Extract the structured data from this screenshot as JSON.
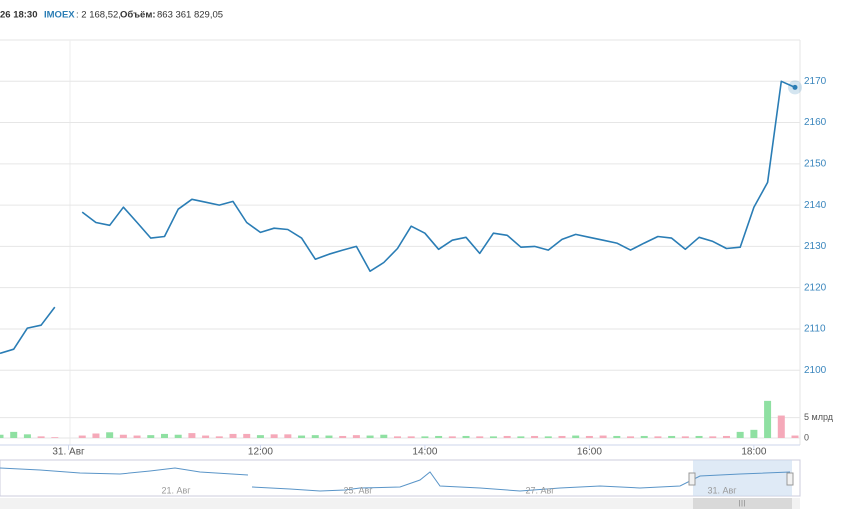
{
  "chart_data": {
    "type": "line",
    "header": {
      "date": "26 18:30",
      "ticker": "IMOEX",
      "price_text": ": 2 168,52,",
      "volume_label": "Объём:",
      "volume_value": "863 361 829,05"
    },
    "categories": [
      null,
      null,
      null,
      null,
      null,
      "31. Авг",
      null,
      null,
      null,
      null,
      null,
      null,
      null,
      null,
      null,
      null,
      null,
      null,
      null,
      "12:00",
      null,
      null,
      null,
      null,
      null,
      null,
      null,
      null,
      null,
      null,
      null,
      "14:00",
      null,
      null,
      null,
      null,
      null,
      null,
      null,
      null,
      null,
      null,
      null,
      "16:00",
      null,
      null,
      null,
      null,
      null,
      null,
      null,
      null,
      null,
      null,
      null,
      "18:00",
      null,
      null,
      null
    ],
    "series": [
      {
        "color": "#2a7db5",
        "values": [
          2104.1,
          2105.1,
          2110.2,
          2110.9,
          2115.3,
          null,
          2138.3,
          2135.8,
          2135.1,
          2139.5,
          2135.8,
          2132.0,
          2132.4,
          2139.0,
          2141.4,
          2140.7,
          2140.0,
          2140.9,
          2135.8,
          2133.4,
          2134.4,
          2134.1,
          2132.0,
          2126.9,
          2128.1,
          2129.1,
          2130.0,
          2124.0,
          2126.1,
          2129.5,
          2134.9,
          2133.2,
          2129.3,
          2131.5,
          2132.2,
          2128.3,
          2133.2,
          2132.7,
          2129.8,
          2130.0,
          2129.1,
          2131.7,
          2132.9,
          2132.2,
          2131.5,
          2130.8,
          2129.1,
          2130.8,
          2132.4,
          2132.0,
          2129.3,
          2132.2,
          2131.2,
          2129.5,
          2129.8,
          2139.5,
          2145.5,
          2170.0,
          2168.52
        ]
      }
    ],
    "ylim": [
      2094,
      2180
    ],
    "yticks": [
      2100,
      2110,
      2120,
      2130,
      2140,
      2150,
      2160,
      2170
    ],
    "grid": true,
    "volume": {
      "values": [
        0.8,
        1.5,
        0.9,
        0.4,
        0.2,
        null,
        0.6,
        1.1,
        1.4,
        0.8,
        0.6,
        0.7,
        1.0,
        0.8,
        1.2,
        0.6,
        0.4,
        1.0,
        1.0,
        0.7,
        0.9,
        0.9,
        0.6,
        0.7,
        0.6,
        0.5,
        0.7,
        0.6,
        0.8,
        0.4,
        0.4,
        0.4,
        0.5,
        0.4,
        0.5,
        0.4,
        0.4,
        0.5,
        0.4,
        0.5,
        0.4,
        0.5,
        0.6,
        0.5,
        0.6,
        0.5,
        0.4,
        0.5,
        0.4,
        0.5,
        0.4,
        0.5,
        0.4,
        0.5,
        1.5,
        2.0,
        9.1,
        5.5,
        0.6
      ],
      "colors": [
        "#8fe0a2",
        "#8fe0a2",
        "#8fe0a2",
        "#f5a9b9",
        "#f5a9b9",
        null,
        "#f5a9b9",
        "#f5a9b9",
        "#8fe0a2",
        "#f5a9b9",
        "#f5a9b9",
        "#8fe0a2",
        "#8fe0a2",
        "#8fe0a2",
        "#f5a9b9",
        "#f5a9b9",
        "#f5a9b9",
        "#f5a9b9",
        "#f5a9b9",
        "#8fe0a2",
        "#f5a9b9",
        "#f5a9b9",
        "#8fe0a2",
        "#8fe0a2",
        "#8fe0a2",
        "#f5a9b9",
        "#f5a9b9",
        "#8fe0a2",
        "#8fe0a2",
        "#f5a9b9",
        "#f5a9b9",
        "#8fe0a2",
        "#8fe0a2",
        "#f5a9b9",
        "#8fe0a2",
        "#f5a9b9",
        "#8fe0a2",
        "#f5a9b9",
        "#8fe0a2",
        "#f5a9b9",
        "#8fe0a2",
        "#f5a9b9",
        "#8fe0a2",
        "#f5a9b9",
        "#f5a9b9",
        "#8fe0a2",
        "#f5a9b9",
        "#8fe0a2",
        "#f5a9b9",
        "#8fe0a2",
        "#f5a9b9",
        "#8fe0a2",
        "#f5a9b9",
        "#f5a9b9",
        "#8fe0a2",
        "#8fe0a2",
        "#8fe0a2",
        "#f5a9b9",
        "#f5a9b9"
      ],
      "ylim": [
        0,
        9.8
      ],
      "yticks": [
        0,
        {
          "value": 5,
          "label": "5 млрд"
        }
      ]
    },
    "navigator": {
      "labels": [
        "21. Авг",
        "25. Авг",
        "27. Авг",
        "31. Авг"
      ],
      "scroll_label": "III"
    }
  }
}
